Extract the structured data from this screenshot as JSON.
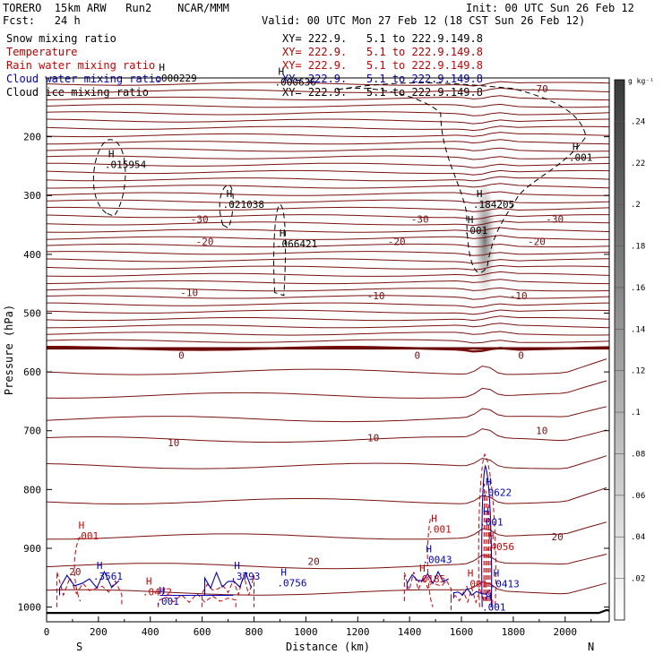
{
  "header": {
    "model": "TORERO  15km ARW   Run2    NCAR/MMM",
    "forecast": "Fcst:   24 h",
    "init": "Init: 00 UTC Sun 26 Feb 12",
    "valid": "Valid: 00 UTC Mon 27 Feb 12 (18 CST Sun 26 Feb 12)"
  },
  "legend": [
    {
      "name": "Snow mixing ratio",
      "xy": "XY= 222.9.   5.1 to 222.9.149.8",
      "color": "#000000"
    },
    {
      "name": "Temperature",
      "xy": "XY= 222.9.   5.1 to 222.9.149.8",
      "color": "#b00000"
    },
    {
      "name": "Rain water mixing ratio",
      "xy": "XY= 222.9.   5.1 to 222.9.149.8",
      "color": "#d00000"
    },
    {
      "name": "Cloud water mixing ratio",
      "xy": "XY= 222.9.   5.1 to 222.9.149.8",
      "color": "#0000c0"
    },
    {
      "name": "Cloud ice mixing ratio",
      "xy": "XY= 222.9.   5.1 to 222.9.149.8",
      "color": "#000000"
    }
  ],
  "chart_data": {
    "type": "cross-section",
    "xlabel": "Distance (km)",
    "ylabel": "Pressure (hPa)",
    "xlim": [
      0,
      2170
    ],
    "ylim": [
      100,
      1025
    ],
    "xticks": [
      0,
      200,
      400,
      600,
      800,
      1000,
      1200,
      1400,
      1600,
      1800,
      2000
    ],
    "yticks": [
      200,
      300,
      400,
      500,
      600,
      700,
      800,
      900,
      1000
    ],
    "left_end": "S",
    "right_end": "N",
    "colorbar": {
      "unit": "g kg⁻¹",
      "ticks": [
        ".02",
        ".04",
        ".06",
        ".08",
        ".1",
        ".12",
        ".14",
        ".16",
        ".18",
        ".2",
        ".22",
        ".24"
      ]
    },
    "temperature_contours": [
      {
        "label": "-70",
        "x": 1900,
        "p": 118
      },
      {
        "label": "-30",
        "x": 590,
        "p": 340
      },
      {
        "label": "-30",
        "x": 1440,
        "p": 340
      },
      {
        "label": "-30",
        "x": 1960,
        "p": 340
      },
      {
        "label": "-20",
        "x": 610,
        "p": 378
      },
      {
        "label": "-20",
        "x": 1350,
        "p": 378
      },
      {
        "label": "-20",
        "x": 1890,
        "p": 378
      },
      {
        "label": "-10",
        "x": 550,
        "p": 465
      },
      {
        "label": "-10",
        "x": 1270,
        "p": 470
      },
      {
        "label": "-10",
        "x": 1820,
        "p": 470
      },
      {
        "label": "0",
        "x": 520,
        "p": 572
      },
      {
        "label": "0",
        "x": 1430,
        "p": 572
      },
      {
        "label": "0",
        "x": 1830,
        "p": 572
      },
      {
        "label": "10",
        "x": 490,
        "p": 720
      },
      {
        "label": "10",
        "x": 1260,
        "p": 712
      },
      {
        "label": "10",
        "x": 1910,
        "p": 700
      },
      {
        "label": "20",
        "x": 110,
        "p": 940
      },
      {
        "label": "20",
        "x": 1030,
        "p": 922
      },
      {
        "label": "20",
        "x": 1970,
        "p": 880
      }
    ],
    "maxima": [
      {
        "label": ".015954",
        "x": 245,
        "p": 250,
        "color": "#000000"
      },
      {
        "label": ".021038",
        "x": 700,
        "p": 318,
        "color": "#000000"
      },
      {
        "label": ".066421",
        "x": 905,
        "p": 385,
        "color": "#000000"
      },
      {
        "label": ".184205",
        "x": 1665,
        "p": 318,
        "color": "#000000"
      },
      {
        "label": ".001",
        "x": 1630,
        "p": 362,
        "color": "#000000"
      },
      {
        "label": ".001",
        "x": 2035,
        "p": 238,
        "color": "#000000"
      },
      {
        "label": ".000229",
        "x": 440,
        "p": 103,
        "color": "#000000"
      },
      {
        "label": ".000636",
        "x": 900,
        "p": 110,
        "color": "#000000"
      },
      {
        "label": ".001",
        "x": 130,
        "p": 882,
        "color": "#d00000"
      },
      {
        "label": ".001",
        "x": 1490,
        "p": 870,
        "color": "#d00000"
      },
      {
        "label": ".0472",
        "x": 390,
        "p": 977,
        "color": "#d00000"
      },
      {
        "label": ".0185",
        "x": 1445,
        "p": 955,
        "color": "#d00000"
      },
      {
        "label": ".001",
        "x": 1630,
        "p": 963,
        "color": "#d00000"
      },
      {
        "label": ".4056",
        "x": 1710,
        "p": 900,
        "color": "#d00000"
      },
      {
        "label": ".3561",
        "x": 200,
        "p": 950,
        "color": "#0000c0"
      },
      {
        "label": ".3793",
        "x": 730,
        "p": 950,
        "color": "#0000c0"
      },
      {
        "label": ".0756",
        "x": 910,
        "p": 962,
        "color": "#0000c0"
      },
      {
        "label": ".001",
        "x": 440,
        "p": 993,
        "color": "#0000c0"
      },
      {
        "label": ".0043",
        "x": 1470,
        "p": 922,
        "color": "#0000c0"
      },
      {
        "label": ".0622",
        "x": 1700,
        "p": 808,
        "color": "#0000c0"
      },
      {
        "label": ".001",
        "x": 1690,
        "p": 858,
        "color": "#0000c0"
      },
      {
        "label": ".0413",
        "x": 1730,
        "p": 963,
        "color": "#0000c0"
      },
      {
        "label": ".001",
        "x": 1700,
        "p": 1003,
        "color": "#0000c0"
      }
    ]
  }
}
